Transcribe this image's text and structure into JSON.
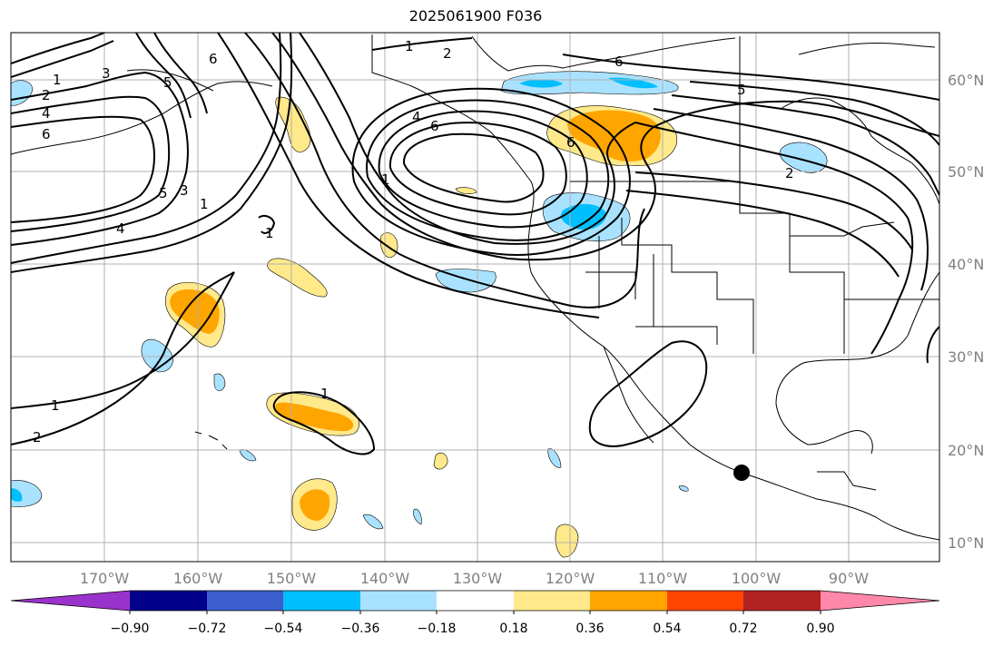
{
  "title": "2025061900 F036",
  "lon_labels": [
    "170°W",
    "160°W",
    "150°W",
    "140°W",
    "130°W",
    "120°W",
    "110°W",
    "100°W",
    "90°W"
  ],
  "lat_labels": [
    "60°N",
    "50°N",
    "40°N",
    "30°N",
    "20°N",
    "10°N"
  ],
  "colorbar": {
    "ticks": [
      "−0.90",
      "−0.72",
      "−0.54",
      "−0.36",
      "−0.18",
      "0.18",
      "0.36",
      "0.54",
      "0.72",
      "0.90"
    ],
    "colors": [
      "#9933cc",
      "#00008b",
      "#3a5fcd",
      "#00bfff",
      "#a9e2ff",
      "#ffffff",
      "#ffe98a",
      "#ffa500",
      "#ff4500",
      "#b22222",
      "#ff88aa"
    ]
  },
  "contour_labels": {
    "l1a": "1",
    "l2a": "2",
    "l4a": "4",
    "l6a": "6",
    "l3a": "3",
    "l5a": "5",
    "l6b": "6",
    "l5b": "5",
    "l3b": "3",
    "l1b": "1",
    "l4b": "4",
    "l1c": "1",
    "l1d": "1",
    "l2b": "2",
    "l1e": "1",
    "l2c": "2",
    "l4c": "4",
    "l6c": "6",
    "l6d": "6",
    "l5c": "5",
    "l2d": "2",
    "l6e": "6",
    "l1f": "1"
  },
  "shading_colors": {
    "pos1": "#ffe98a",
    "pos2": "#ffa500",
    "neg1": "#a9e2ff",
    "neg2": "#00bfff"
  },
  "marker_color": "#000000"
}
